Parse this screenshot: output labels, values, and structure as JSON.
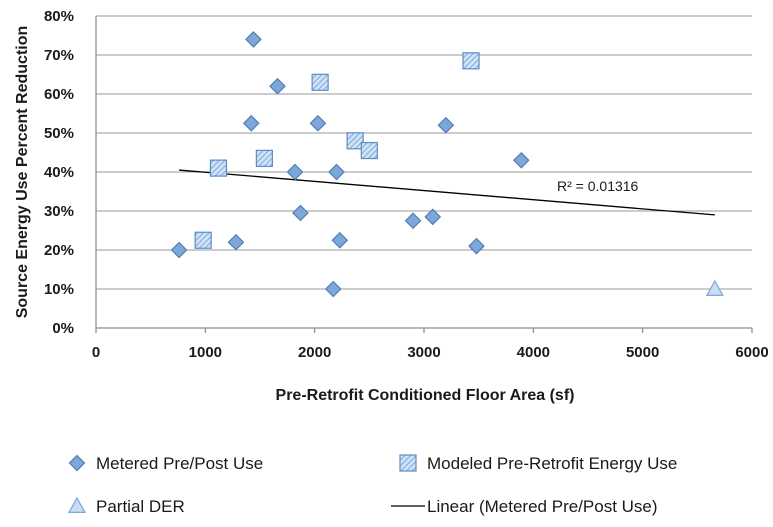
{
  "chart_data": {
    "type": "scatter",
    "title": "",
    "xlabel": "Pre-Retrofit Conditioned Floor Area (sf)",
    "ylabel": "Source Energy Use Percent Reduction",
    "xlim": [
      0,
      6000
    ],
    "ylim": [
      0,
      0.8
    ],
    "x_ticks": [
      0,
      1000,
      2000,
      3000,
      4000,
      5000,
      6000
    ],
    "x_tick_labels": [
      "0",
      "1000",
      "2000",
      "3000",
      "4000",
      "5000",
      "6000"
    ],
    "y_ticks": [
      0,
      0.1,
      0.2,
      0.3,
      0.4,
      0.5,
      0.6,
      0.7,
      0.8
    ],
    "y_tick_labels": [
      "0%",
      "10%",
      "20%",
      "30%",
      "40%",
      "50%",
      "60%",
      "70%",
      "80%"
    ],
    "grid": "horizontal",
    "legend_position": "bottom",
    "series": [
      {
        "name": "Metered Pre/Post Use",
        "marker": "diamond",
        "color": "#7ea6d8",
        "stroke": "#4f7fb5",
        "points": [
          [
            760,
            0.2
          ],
          [
            1280,
            0.22
          ],
          [
            1420,
            0.525
          ],
          [
            1440,
            0.74
          ],
          [
            1660,
            0.62
          ],
          [
            1820,
            0.4
          ],
          [
            1870,
            0.295
          ],
          [
            2030,
            0.525
          ],
          [
            2170,
            0.1
          ],
          [
            2200,
            0.4
          ],
          [
            2230,
            0.225
          ],
          [
            2900,
            0.275
          ],
          [
            3080,
            0.285
          ],
          [
            3200,
            0.52
          ],
          [
            3480,
            0.21
          ],
          [
            3890,
            0.43
          ]
        ]
      },
      {
        "name": "Modeled Pre-Retrofit Energy Use",
        "marker": "square-hatched",
        "color": "#aecdf0",
        "stroke": "#5b8cc6",
        "points": [
          [
            980,
            0.225
          ],
          [
            1120,
            0.41
          ],
          [
            1540,
            0.435
          ],
          [
            2050,
            0.63
          ],
          [
            2370,
            0.48
          ],
          [
            2500,
            0.455
          ],
          [
            3430,
            0.685
          ]
        ]
      },
      {
        "name": "Partial DER",
        "marker": "triangle",
        "color": "#c8dcf2",
        "stroke": "#7ea6d8",
        "points": [
          [
            5660,
            0.1
          ]
        ]
      }
    ],
    "trendline": {
      "name": "Linear (Metered Pre/Post Use)",
      "color": "#000000",
      "x": [
        760,
        5660
      ],
      "y": [
        0.405,
        0.29
      ],
      "annotation": "R² = 0.01316"
    }
  }
}
